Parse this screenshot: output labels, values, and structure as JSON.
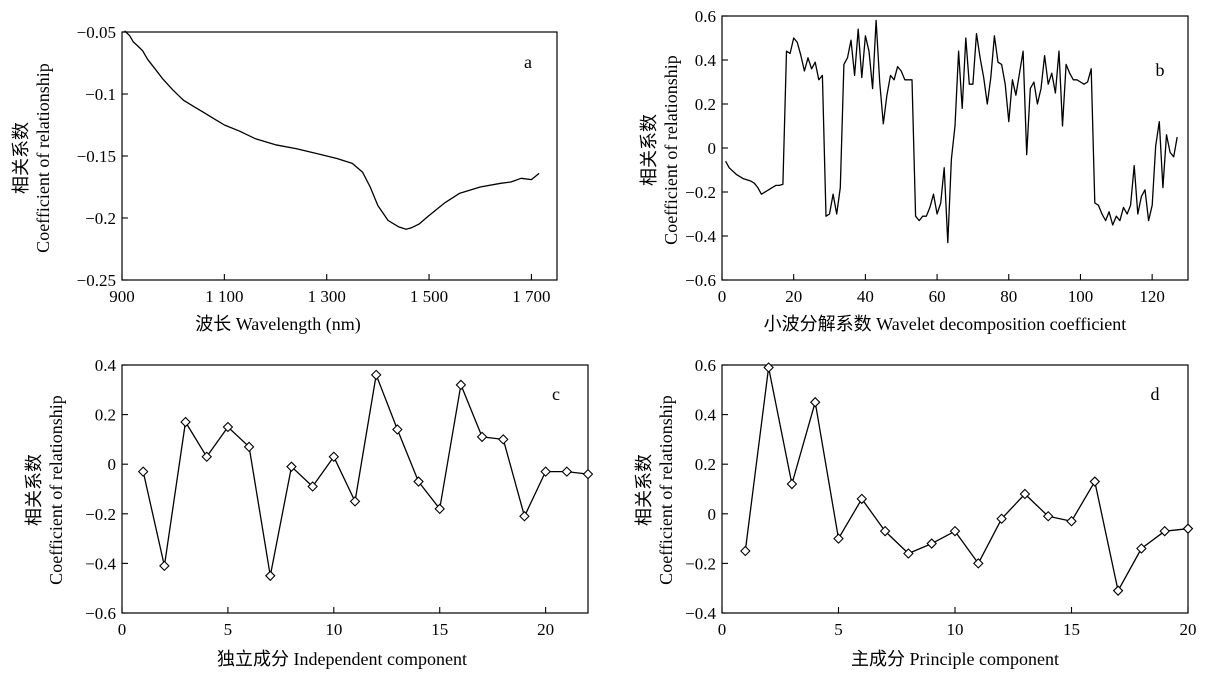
{
  "chart_data": [
    {
      "panel": "a",
      "type": "line",
      "xlabel": "波长 Wavelength (nm)",
      "ylabel_lines": [
        "相关系数",
        "Coefficient of relationship"
      ],
      "xlim": [
        900,
        1750
      ],
      "ylim": [
        -0.25,
        -0.05
      ],
      "xticks": [
        900,
        1100,
        1300,
        1500,
        1700
      ],
      "xtick_labels": [
        "900",
        "1 100",
        "1 300",
        "1 500",
        "1 700"
      ],
      "yticks": [
        -0.25,
        -0.2,
        -0.15,
        -0.1,
        -0.05
      ],
      "ytick_labels": [
        "−0.25",
        "−0.2",
        "−0.15",
        "−0.1",
        "−0.05"
      ],
      "markers": false,
      "series": [
        {
          "x": [
            905,
            915,
            922,
            930,
            940,
            950,
            965,
            980,
            1000,
            1020,
            1040,
            1060,
            1080,
            1100,
            1130,
            1160,
            1200,
            1240,
            1280,
            1320,
            1350,
            1370,
            1385,
            1400,
            1420,
            1440,
            1455,
            1465,
            1480,
            1500,
            1530,
            1560,
            1600,
            1640,
            1660,
            1680,
            1700,
            1715
          ],
          "y": [
            -0.049,
            -0.053,
            -0.058,
            -0.061,
            -0.065,
            -0.072,
            -0.08,
            -0.088,
            -0.097,
            -0.105,
            -0.11,
            -0.115,
            -0.12,
            -0.125,
            -0.13,
            -0.136,
            -0.141,
            -0.144,
            -0.148,
            -0.152,
            -0.156,
            -0.163,
            -0.175,
            -0.19,
            -0.202,
            -0.207,
            -0.209,
            -0.208,
            -0.205,
            -0.198,
            -0.188,
            -0.18,
            -0.175,
            -0.172,
            -0.171,
            -0.168,
            -0.169,
            -0.164
          ]
        }
      ]
    },
    {
      "panel": "b",
      "type": "line",
      "xlabel": "小波分解系数 Wavelet decomposition coefficient",
      "ylabel_lines": [
        "相关系数",
        "Coefficient of relationship"
      ],
      "xlim": [
        0,
        130
      ],
      "ylim": [
        -0.6,
        0.6
      ],
      "xticks": [
        0,
        20,
        40,
        60,
        80,
        100,
        120
      ],
      "xtick_labels": [
        "0",
        "20",
        "40",
        "60",
        "80",
        "100",
        "120"
      ],
      "yticks": [
        -0.6,
        -0.4,
        -0.2,
        0,
        0.2,
        0.4,
        0.6
      ],
      "ytick_labels": [
        "−0.6",
        "−0.4",
        "−0.2",
        "0",
        "0.2",
        "0.4",
        "0.6"
      ],
      "markers": false,
      "series": [
        {
          "x": [
            1,
            2,
            4,
            6,
            8,
            9,
            10,
            11,
            13,
            15,
            16,
            17,
            18,
            19,
            20,
            21,
            22,
            23,
            24,
            25,
            26,
            27,
            28,
            29,
            30,
            31,
            32,
            33,
            34,
            35,
            36,
            37,
            38,
            39,
            40,
            41,
            42,
            43,
            44,
            45,
            46,
            47,
            48,
            49,
            50,
            51,
            52,
            53,
            54,
            55,
            56,
            57,
            58,
            59,
            60,
            61,
            62,
            63,
            64,
            65,
            66,
            67,
            68,
            69,
            70,
            71,
            72,
            73,
            74,
            75,
            76,
            77,
            78,
            79,
            80,
            81,
            82,
            83,
            84,
            85,
            86,
            87,
            88,
            89,
            90,
            91,
            92,
            93,
            94,
            95,
            96,
            97,
            98,
            99,
            100,
            101,
            102,
            103,
            104,
            105,
            106,
            107,
            108,
            109,
            110,
            111,
            112,
            113,
            114,
            115,
            116,
            117,
            118,
            119,
            120,
            121,
            122,
            123,
            124,
            125,
            126,
            127
          ],
          "y": [
            -0.06,
            -0.09,
            -0.12,
            -0.14,
            -0.15,
            -0.16,
            -0.18,
            -0.21,
            -0.19,
            -0.17,
            -0.17,
            -0.165,
            0.44,
            0.43,
            0.5,
            0.48,
            0.42,
            0.35,
            0.41,
            0.36,
            0.39,
            0.31,
            0.33,
            -0.31,
            -0.3,
            -0.21,
            -0.3,
            -0.18,
            0.38,
            0.41,
            0.49,
            0.33,
            0.54,
            0.32,
            0.51,
            0.44,
            0.27,
            0.58,
            0.3,
            0.11,
            0.24,
            0.33,
            0.31,
            0.37,
            0.35,
            0.31,
            0.31,
            0.31,
            -0.31,
            -0.33,
            -0.31,
            -0.31,
            -0.27,
            -0.21,
            -0.3,
            -0.25,
            -0.09,
            -0.43,
            -0.05,
            0.1,
            0.44,
            0.18,
            0.5,
            0.29,
            0.29,
            0.52,
            0.41,
            0.32,
            0.2,
            0.32,
            0.51,
            0.39,
            0.38,
            0.29,
            0.12,
            0.31,
            0.24,
            0.34,
            0.44,
            -0.03,
            0.27,
            0.3,
            0.2,
            0.27,
            0.42,
            0.29,
            0.34,
            0.25,
            0.44,
            0.1,
            0.38,
            0.34,
            0.31,
            0.31,
            0.3,
            0.29,
            0.3,
            0.36,
            -0.25,
            -0.26,
            -0.3,
            -0.33,
            -0.29,
            -0.35,
            -0.31,
            -0.33,
            -0.27,
            -0.3,
            -0.26,
            -0.08,
            -0.3,
            -0.22,
            -0.19,
            -0.33,
            -0.26,
            0.01,
            0.12,
            -0.18,
            0.06,
            -0.02,
            -0.04,
            0.05
          ]
        }
      ]
    },
    {
      "panel": "c",
      "type": "line",
      "xlabel": "独立成分 Independent component",
      "ylabel_lines": [
        "相关系数",
        "Coefficient of relationship"
      ],
      "xlim": [
        0,
        22
      ],
      "ylim": [
        -0.6,
        0.4
      ],
      "xticks": [
        0,
        5,
        10,
        15,
        20
      ],
      "xtick_labels": [
        "0",
        "5",
        "10",
        "15",
        "20"
      ],
      "yticks": [
        -0.6,
        -0.4,
        -0.2,
        0,
        0.2,
        0.4
      ],
      "ytick_labels": [
        "−0.6",
        "−0.4",
        "−0.2",
        "0",
        "0.2",
        "0.4"
      ],
      "markers": true,
      "series": [
        {
          "x": [
            1,
            2,
            3,
            4,
            5,
            6,
            7,
            8,
            9,
            10,
            11,
            12,
            13,
            14,
            15,
            16,
            17,
            18,
            19,
            20,
            21,
            22
          ],
          "y": [
            -0.03,
            -0.41,
            0.17,
            0.03,
            0.15,
            0.07,
            -0.45,
            -0.01,
            -0.09,
            0.03,
            -0.15,
            0.36,
            0.14,
            -0.07,
            -0.18,
            0.32,
            0.11,
            0.1,
            -0.21,
            -0.03,
            -0.03,
            -0.04
          ]
        }
      ]
    },
    {
      "panel": "d",
      "type": "line",
      "xlabel": "主成分 Principle component",
      "ylabel_lines": [
        "相关系数",
        "Coefficient of relationship"
      ],
      "xlim": [
        0,
        20
      ],
      "ylim": [
        -0.4,
        0.6
      ],
      "xticks": [
        0,
        5,
        10,
        15,
        20
      ],
      "xtick_labels": [
        "0",
        "5",
        "10",
        "15",
        "20"
      ],
      "yticks": [
        -0.4,
        -0.2,
        0,
        0.2,
        0.4,
        0.6
      ],
      "ytick_labels": [
        "−0.4",
        "−0.2",
        "0",
        "0.2",
        "0.4",
        "0.6"
      ],
      "markers": true,
      "series": [
        {
          "x": [
            1,
            2,
            3,
            4,
            5,
            6,
            7,
            8,
            9,
            10,
            11,
            12,
            13,
            14,
            15,
            16,
            17,
            18,
            19,
            20
          ],
          "y": [
            -0.15,
            0.59,
            0.12,
            0.45,
            -0.1,
            0.06,
            -0.07,
            -0.16,
            -0.12,
            -0.07,
            -0.2,
            -0.02,
            0.08,
            -0.01,
            -0.03,
            0.13,
            -0.31,
            -0.14,
            -0.07,
            -0.06
          ]
        }
      ]
    }
  ]
}
